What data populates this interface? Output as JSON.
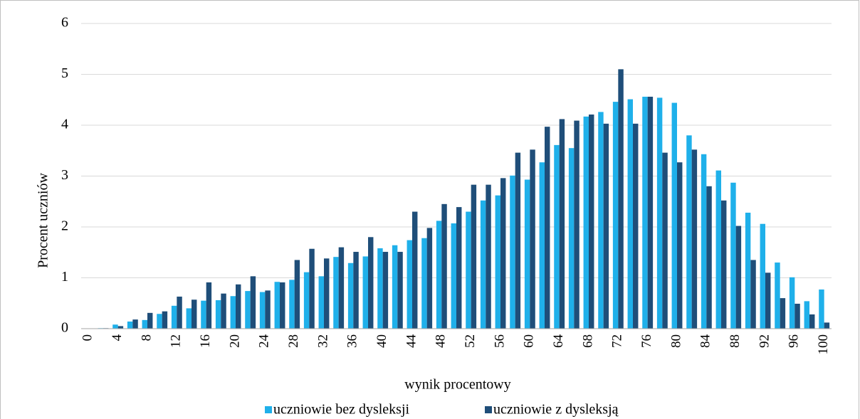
{
  "chart_data": {
    "type": "bar",
    "x_label": "wynik procentowy",
    "y_label": "Procent uczniów",
    "categories": [
      "0",
      null,
      "4",
      null,
      "8",
      null,
      "12",
      null,
      "16",
      null,
      "20",
      null,
      "24",
      null,
      "28",
      null,
      "32",
      null,
      "36",
      null,
      "40",
      null,
      "44",
      null,
      "48",
      null,
      "52",
      null,
      "56",
      null,
      "60",
      null,
      "64",
      null,
      "68",
      null,
      "72",
      null,
      "76",
      null,
      "80",
      null,
      "84",
      null,
      "88",
      null,
      "92",
      null,
      "96",
      null,
      "100"
    ],
    "series": [
      {
        "name": "uczniowie bez dysleksji",
        "color": "#1fb0ea",
        "values": [
          0,
          0.01,
          0.08,
          0.14,
          0.17,
          0.29,
          0.45,
          0.4,
          0.55,
          0.56,
          0.64,
          0.74,
          0.72,
          0.92,
          0.96,
          1.11,
          1.03,
          1.41,
          1.29,
          1.42,
          1.58,
          1.64,
          1.74,
          1.78,
          2.12,
          2.07,
          2.3,
          2.52,
          2.62,
          3.01,
          2.93,
          3.27,
          3.61,
          3.55,
          4.17,
          4.26,
          4.46,
          4.51,
          4.56,
          4.54,
          4.44,
          3.8,
          3.43,
          3.11,
          2.87,
          2.28,
          2.06,
          1.3,
          1.01,
          0.54,
          0.77
        ]
      },
      {
        "name": "uczniowie z dysleksją",
        "color": "#1f4e79",
        "values": [
          0,
          0.01,
          0.05,
          0.18,
          0.31,
          0.34,
          0.63,
          0.57,
          0.91,
          0.69,
          0.87,
          1.03,
          0.75,
          0.91,
          1.35,
          1.57,
          1.38,
          1.6,
          1.51,
          1.8,
          1.51,
          1.51,
          2.3,
          1.98,
          2.45,
          2.39,
          2.83,
          2.83,
          2.96,
          3.46,
          3.52,
          3.97,
          4.12,
          4.09,
          4.21,
          4.03,
          5.1,
          4.03,
          4.56,
          3.46,
          3.27,
          3.52,
          2.8,
          2.52,
          2.02,
          1.35,
          1.1,
          0.6,
          0.49,
          0.28,
          0.12
        ]
      }
    ],
    "ylim": [
      0,
      6
    ],
    "yticks": [
      0,
      1,
      2,
      3,
      4,
      5,
      6
    ],
    "grid": true,
    "legend": "bottom"
  }
}
